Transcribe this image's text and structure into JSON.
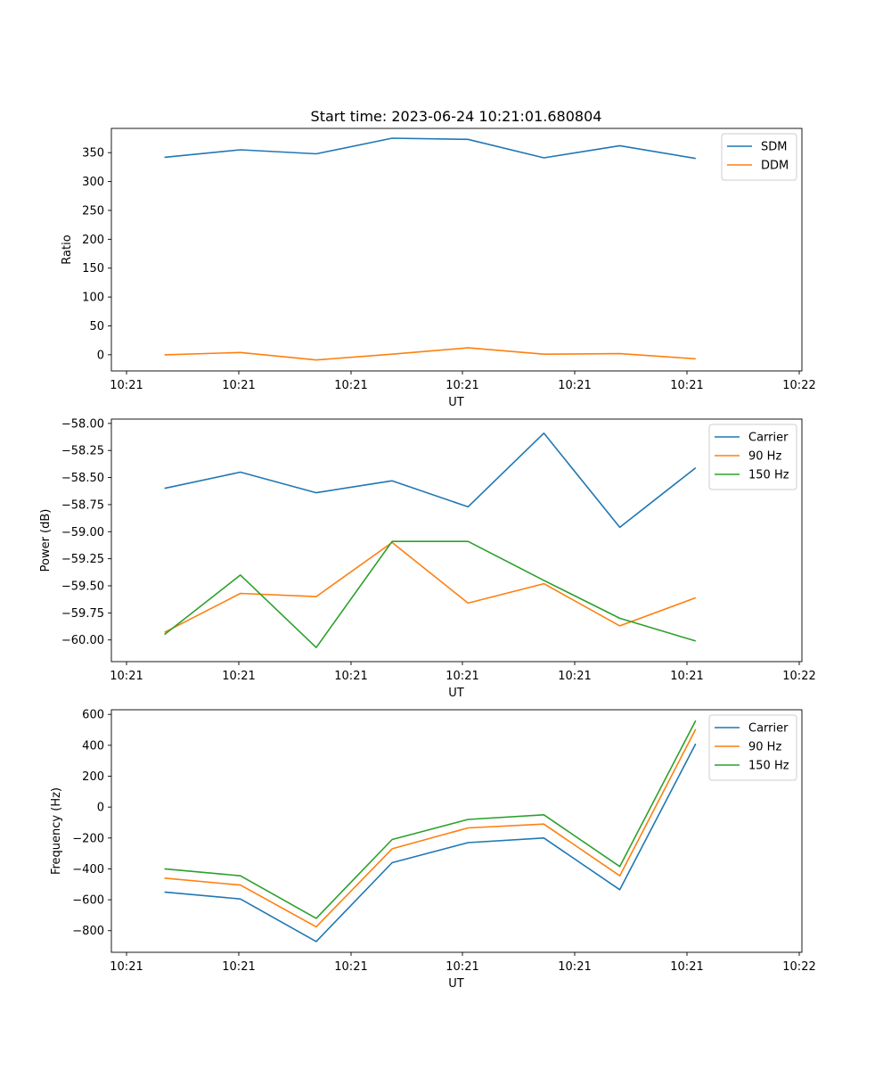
{
  "figure_title": "Start time: 2023-06-24 10:21:01.680804",
  "x_tick_labels": [
    "10:21",
    "10:21",
    "10:21",
    "10:21",
    "10:21",
    "10:21",
    "10:22"
  ],
  "chart_data": [
    {
      "type": "line",
      "title": "Start time: 2023-06-24 10:21:01.680804",
      "xlabel": "UT",
      "ylabel": "Ratio",
      "x": [
        1,
        2,
        3,
        4,
        5,
        6,
        7,
        8
      ],
      "xlim": [
        0.3,
        9.4
      ],
      "ylim": [
        -28,
        392
      ],
      "yticks": [
        0,
        50,
        100,
        150,
        200,
        250,
        300,
        350
      ],
      "ytick_labels": [
        "0",
        "50",
        "100",
        "150",
        "200",
        "250",
        "300",
        "350"
      ],
      "legend_position": "upper right",
      "series": [
        {
          "name": "SDM",
          "color": "#1f77b4",
          "values": [
            342,
            355,
            348,
            375,
            373,
            341,
            362,
            340
          ]
        },
        {
          "name": "DDM",
          "color": "#ff7f0e",
          "values": [
            0,
            4,
            -9,
            1,
            12,
            1,
            2,
            -7
          ]
        }
      ]
    },
    {
      "type": "line",
      "xlabel": "UT",
      "ylabel": "Power (dB)",
      "x": [
        1,
        2,
        3,
        4,
        5,
        6,
        7,
        8
      ],
      "xlim": [
        0.3,
        9.4
      ],
      "ylim": [
        -60.2,
        -57.96
      ],
      "yticks": [
        -60.0,
        -59.75,
        -59.5,
        -59.25,
        -59.0,
        -58.75,
        -58.5,
        -58.25,
        -58.0
      ],
      "ytick_labels": [
        "−60.00",
        "−59.75",
        "−59.50",
        "−59.25",
        "−59.00",
        "−58.75",
        "−58.50",
        "−58.25",
        "−58.00"
      ],
      "legend_position": "upper right",
      "series": [
        {
          "name": "Carrier",
          "color": "#1f77b4",
          "values": [
            -58.6,
            -58.45,
            -58.64,
            -58.53,
            -58.77,
            -58.09,
            -58.96,
            -58.41
          ]
        },
        {
          "name": "90 Hz",
          "color": "#ff7f0e",
          "values": [
            -59.93,
            -59.57,
            -59.6,
            -59.1,
            -59.66,
            -59.48,
            -59.87,
            -59.61
          ]
        },
        {
          "name": "150 Hz",
          "color": "#2ca02c",
          "values": [
            -59.95,
            -59.4,
            -60.07,
            -59.09,
            -59.09,
            -59.45,
            -59.8,
            -60.01
          ]
        }
      ]
    },
    {
      "type": "line",
      "xlabel": "UT",
      "ylabel": "Frequency (Hz)",
      "x": [
        1,
        2,
        3,
        4,
        5,
        6,
        7,
        8
      ],
      "xlim": [
        0.3,
        9.4
      ],
      "ylim": [
        -940,
        630
      ],
      "yticks": [
        -800,
        -600,
        -400,
        -200,
        0,
        200,
        400,
        600
      ],
      "ytick_labels": [
        "−800",
        "−600",
        "−400",
        "−200",
        "0",
        "200",
        "400",
        "600"
      ],
      "legend_position": "upper right",
      "series": [
        {
          "name": "Carrier",
          "color": "#1f77b4",
          "values": [
            -550,
            -595,
            -870,
            -360,
            -230,
            -200,
            -535,
            410
          ]
        },
        {
          "name": "90 Hz",
          "color": "#ff7f0e",
          "values": [
            -460,
            -505,
            -775,
            -270,
            -135,
            -110,
            -445,
            505
          ]
        },
        {
          "name": "150 Hz",
          "color": "#2ca02c",
          "values": [
            -400,
            -445,
            -720,
            -210,
            -80,
            -50,
            -385,
            560
          ]
        }
      ]
    }
  ]
}
